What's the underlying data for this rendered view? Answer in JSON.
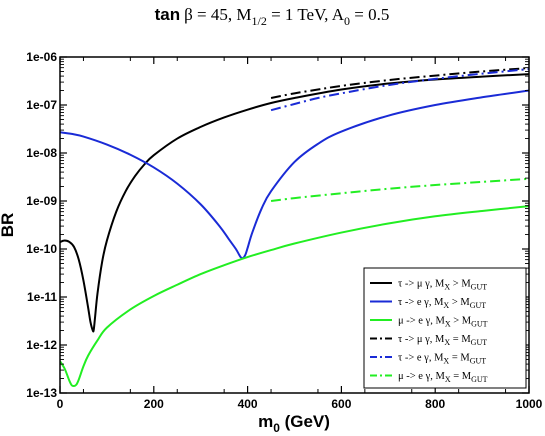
{
  "chart_data": {
    "type": "line",
    "title": {
      "prefix": "tan",
      "rest": "β = 45, M",
      "sub1": "1/2",
      "mid": " = 1 TeV, A",
      "sub2": "0",
      "end": " = 0.5"
    },
    "xlabel": {
      "main": "m",
      "sub": "0",
      "rest": " (GeV)"
    },
    "ylabel": "BR",
    "xlim": [
      0,
      1000
    ],
    "ylim": [
      1e-13,
      1e-06
    ],
    "yscale": "log",
    "x_ticks": [
      "0",
      "200",
      "400",
      "600",
      "800",
      "1000"
    ],
    "y_ticks": [
      "1e-13",
      "1e-12",
      "1e-11",
      "1e-10",
      "1e-09",
      "1e-08",
      "1e-07",
      "1e-06"
    ],
    "legend_position": "bottom-right",
    "series": [
      {
        "name": {
          "a": "τ -> μ γ, M",
          "s1": "X",
          "b": " > M",
          "s2": "GUT"
        },
        "color": "#000000",
        "dash": "solid",
        "x": [
          0,
          10,
          20,
          30,
          40,
          50,
          60,
          65,
          70,
          72,
          75,
          80,
          90,
          100,
          120,
          140,
          160,
          180,
          200,
          250,
          300,
          350,
          400,
          450,
          500,
          600,
          700,
          800,
          900,
          1000
        ],
        "y": [
          1.4e-10,
          1.5e-10,
          1.4e-10,
          1.1e-10,
          6e-11,
          2.2e-11,
          6e-12,
          3e-12,
          2e-12,
          2.1e-12,
          4e-12,
          1.2e-11,
          5.5e-11,
          1.5e-10,
          6e-10,
          1.6e-09,
          3.3e-09,
          5.8e-09,
          9e-09,
          2e-08,
          3.5e-08,
          5.5e-08,
          8e-08,
          1.1e-07,
          1.4e-07,
          2.1e-07,
          2.8e-07,
          3.4e-07,
          3.9e-07,
          4.4e-07
        ]
      },
      {
        "name": {
          "a": "τ -> e γ, M",
          "s1": "X",
          "b": " > M",
          "s2": "GUT"
        },
        "color": "#1a2bd6",
        "dash": "solid",
        "x": [
          0,
          25,
          50,
          100,
          150,
          200,
          250,
          300,
          340,
          360,
          375,
          385,
          390,
          395,
          400,
          410,
          430,
          450,
          500,
          550,
          600,
          700,
          800,
          900,
          1000
        ],
        "y": [
          2.7e-08,
          2.5e-08,
          2.2e-08,
          1.5e-08,
          9.2e-09,
          5e-09,
          2.3e-09,
          8.5e-10,
          3e-10,
          1.6e-10,
          1e-10,
          6.8e-11,
          6.5e-11,
          7.5e-11,
          1.05e-10,
          2.2e-10,
          7e-10,
          1.6e-09,
          6.5e-09,
          1.55e-08,
          2.8e-08,
          6e-08,
          1e-07,
          1.45e-07,
          2e-07
        ]
      },
      {
        "name": {
          "a": "μ -> e γ, M",
          "s1": "X",
          "b": " > M",
          "s2": "GUT"
        },
        "color": "#22ee22",
        "dash": "solid",
        "x": [
          0,
          10,
          20,
          25,
          30,
          35,
          40,
          50,
          60,
          80,
          100,
          150,
          200,
          250,
          300,
          350,
          400,
          450,
          500,
          600,
          700,
          800,
          900,
          1000
        ],
        "y": [
          4.6e-13,
          3.2e-13,
          1.8e-13,
          1.45e-13,
          1.4e-13,
          1.5e-13,
          1.9e-13,
          3.6e-13,
          6e-13,
          1.25e-12,
          2.3e-12,
          5.5e-12,
          1.05e-11,
          1.8e-11,
          3e-11,
          4.6e-11,
          6.8e-11,
          9.5e-11,
          1.3e-10,
          2.2e-10,
          3.4e-10,
          4.8e-10,
          6.2e-10,
          7.8e-10
        ]
      },
      {
        "name": {
          "a": "τ -> μ γ, M",
          "s1": "X",
          "b": " = M",
          "s2": "GUT"
        },
        "color": "#000000",
        "dash": "dashdot",
        "x": [
          450,
          500,
          550,
          600,
          700,
          800,
          900,
          1000
        ],
        "y": [
          1.4e-07,
          1.75e-07,
          2.1e-07,
          2.5e-07,
          3.3e-07,
          4.1e-07,
          5e-07,
          5.9e-07
        ]
      },
      {
        "name": {
          "a": "τ -> e γ, M",
          "s1": "X",
          "b": " = M",
          "s2": "GUT"
        },
        "color": "#1a2bd6",
        "dash": "dashdot",
        "x": [
          450,
          500,
          550,
          600,
          700,
          800,
          900,
          1000
        ],
        "y": [
          7.8e-08,
          1.05e-07,
          1.4e-07,
          1.75e-07,
          2.6e-07,
          3.5e-07,
          4.5e-07,
          5.6e-07
        ]
      },
      {
        "name": {
          "a": "μ -> e γ, M",
          "s1": "X",
          "b": " = M",
          "s2": "GUT"
        },
        "color": "#22ee22",
        "dash": "dashdot",
        "x": [
          450,
          500,
          600,
          700,
          800,
          900,
          1000
        ],
        "y": [
          1e-09,
          1.15e-09,
          1.45e-09,
          1.8e-09,
          2.15e-09,
          2.5e-09,
          2.9e-09
        ]
      }
    ]
  }
}
